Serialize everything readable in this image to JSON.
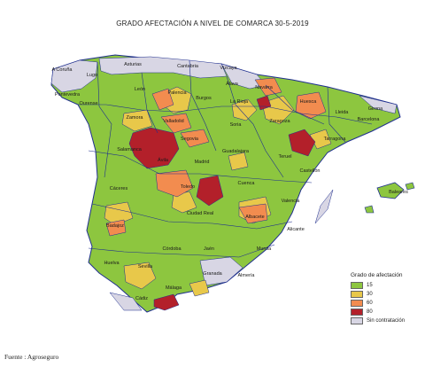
{
  "title": "GRADO AFECTACIÓN A NIVEL DE COMARCA 30-5-2019",
  "source": "Fuente : Agroseguro",
  "colors": {
    "c15": "#8dc63f",
    "c30": "#e8c84a",
    "c60": "#f28c4f",
    "c80": "#b3202a",
    "sin": "#d8d6e4",
    "border": "#1f2f8f",
    "sea": "#ffffff"
  },
  "legend": {
    "title": "Grado de afectación",
    "items": [
      {
        "label": "15",
        "color": "#8dc63f"
      },
      {
        "label": "30",
        "color": "#e8c84a"
      },
      {
        "label": "60",
        "color": "#f28c4f"
      },
      {
        "label": "80",
        "color": "#b3202a"
      },
      {
        "label": "Sin contratación",
        "color": "#d8d6e4"
      }
    ]
  },
  "provinces": [
    "A Coruña",
    "Lugo",
    "Pontevedra",
    "Ourense",
    "Asturias",
    "Cantabria",
    "Vizcaya",
    "Álava",
    "Navarra",
    "León",
    "Palencia",
    "Burgos",
    "La Rioja",
    "Huesca",
    "Girona",
    "Lleida",
    "Barcelona",
    "Zamora",
    "Valladolid",
    "Soria",
    "Zaragoza",
    "Tarragona",
    "Segovia",
    "Salamanca",
    "Ávila",
    "Madrid",
    "Guadalajara",
    "Teruel",
    "Castellón",
    "Baleares",
    "Cáceres",
    "Toledo",
    "Cuenca",
    "Valencia",
    "Badajoz",
    "Ciudad Real",
    "Albacete",
    "Alicante",
    "Córdoba",
    "Jaén",
    "Murcia",
    "Huelva",
    "Sevilla",
    "Granada",
    "Almería",
    "Cádiz",
    "Málaga"
  ]
}
